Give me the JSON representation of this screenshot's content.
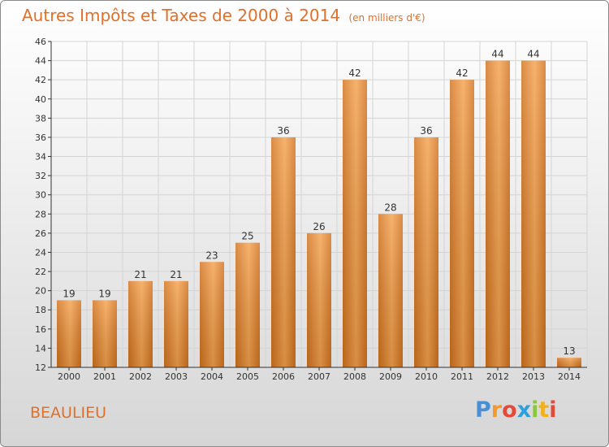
{
  "title": "Autres Impôts et Taxes de 2000 à 2014",
  "subtitle": "(en milliers d'€)",
  "commune": "BEAULIEU",
  "logo": {
    "letters": [
      "P",
      "r",
      "o",
      "x",
      "i",
      "t",
      "i"
    ],
    "colors": [
      "#4a8fd6",
      "#f29a2e",
      "#e24a3a",
      "#2f9fdc",
      "#8cc63f",
      "#f2b11c",
      "#e24a3a"
    ]
  },
  "colors": {
    "bar_light": "#f5a24e",
    "bar_dark": "#d2731e",
    "text": "#e0702a",
    "axis": "#333333",
    "grid": "#d4d4d4"
  },
  "chart_data": {
    "type": "bar",
    "categories": [
      "2000",
      "2001",
      "2002",
      "2003",
      "2004",
      "2005",
      "2006",
      "2007",
      "2008",
      "2009",
      "2010",
      "2011",
      "2012",
      "2013",
      "2014"
    ],
    "values": [
      19,
      19,
      21,
      21,
      23,
      25,
      36,
      26,
      42,
      28,
      36,
      42,
      44,
      44,
      13
    ],
    "ylim": [
      12,
      46
    ],
    "yticks": [
      12,
      14,
      16,
      18,
      20,
      22,
      24,
      26,
      28,
      30,
      32,
      34,
      36,
      38,
      40,
      42,
      44,
      46
    ],
    "grid": true,
    "xlabel": "",
    "ylabel": ""
  }
}
